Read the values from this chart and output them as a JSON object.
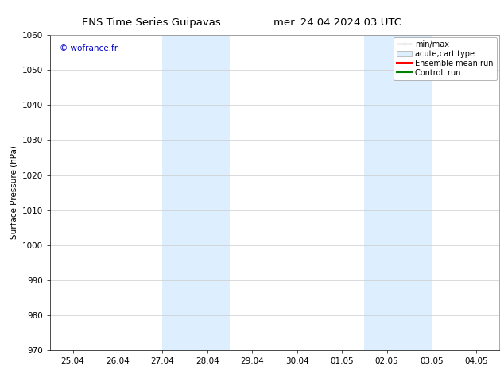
{
  "title_left": "ENS Time Series Guipavas",
  "title_right": "mer. 24.04.2024 03 UTC",
  "ylabel": "Surface Pressure (hPa)",
  "ylim": [
    970,
    1060
  ],
  "yticks": [
    970,
    980,
    990,
    1000,
    1010,
    1020,
    1030,
    1040,
    1050,
    1060
  ],
  "xtick_labels": [
    "25.04",
    "26.04",
    "27.04",
    "28.04",
    "29.04",
    "30.04",
    "01.05",
    "02.05",
    "03.05",
    "04.05"
  ],
  "watermark": "© wofrance.fr",
  "watermark_color": "#0000cc",
  "bg_color": "#ffffff",
  "plot_bg_color": "#ffffff",
  "shaded_regions": [
    {
      "xstart": 2.0,
      "xend": 3.5,
      "color": "#ddeeff"
    },
    {
      "xstart": 6.5,
      "xend": 8.0,
      "color": "#ddeeff"
    }
  ],
  "legend_items": [
    {
      "label": "min/max",
      "color": "#aaaaaa",
      "lw": 1.0,
      "style": "minmax"
    },
    {
      "label": "acute;cart type",
      "color": "#ddeeff",
      "lw": 6,
      "style": "fill"
    },
    {
      "label": "Ensemble mean run",
      "color": "#ff0000",
      "lw": 1.5,
      "style": "line"
    },
    {
      "label": "Controll run",
      "color": "#008000",
      "lw": 1.5,
      "style": "line"
    }
  ],
  "grid_color": "#cccccc",
  "font_size": 7.5,
  "title_font_size": 9.5
}
